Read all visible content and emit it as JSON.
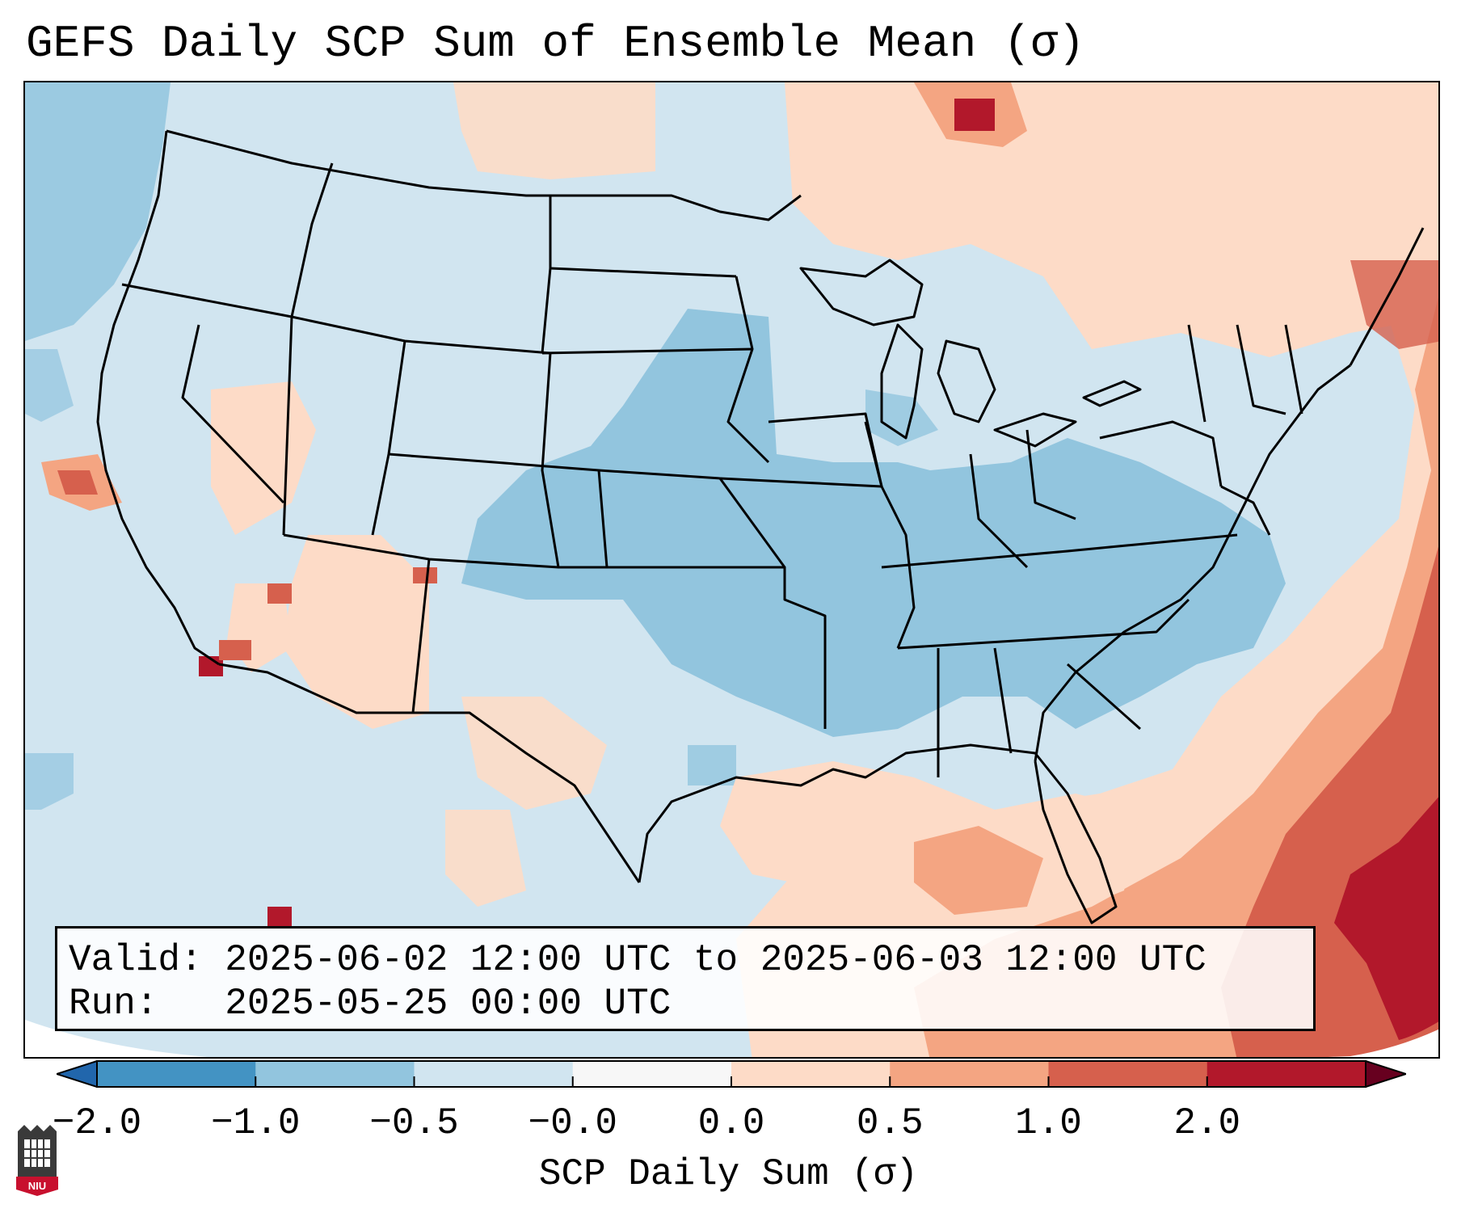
{
  "title": "GEFS Daily SCP Sum of Ensemble Mean (σ)",
  "valid_box": {
    "valid_label": "Valid:",
    "valid_value": "2025-06-02 12:00 UTC to 2025-06-03 12:00 UTC",
    "run_label": "Run:",
    "run_value": "2025-05-25 00:00 UTC"
  },
  "colorbar": {
    "label": "SCP Daily Sum (σ)",
    "ticks": [
      "−2.0",
      "−1.0",
      "−0.5",
      "−0.0",
      "0.0",
      "0.5",
      "1.0",
      "2.0"
    ],
    "colors": [
      "#4393c3",
      "#92c5de",
      "#d1e5f0",
      "#f7f7f7",
      "#fddbc7",
      "#f4a582",
      "#d6604d",
      "#b2182b"
    ],
    "extend": "both"
  },
  "map": {
    "projection": "Lambert Conformal",
    "region": "CONUS",
    "dominant_signal": "Below-normal SCP over the Plains, Midwest and Southeast; above-normal SCP over the Gulf of Mexico, western Atlantic and the Caribbean"
  },
  "logo": {
    "text": "NIU"
  }
}
